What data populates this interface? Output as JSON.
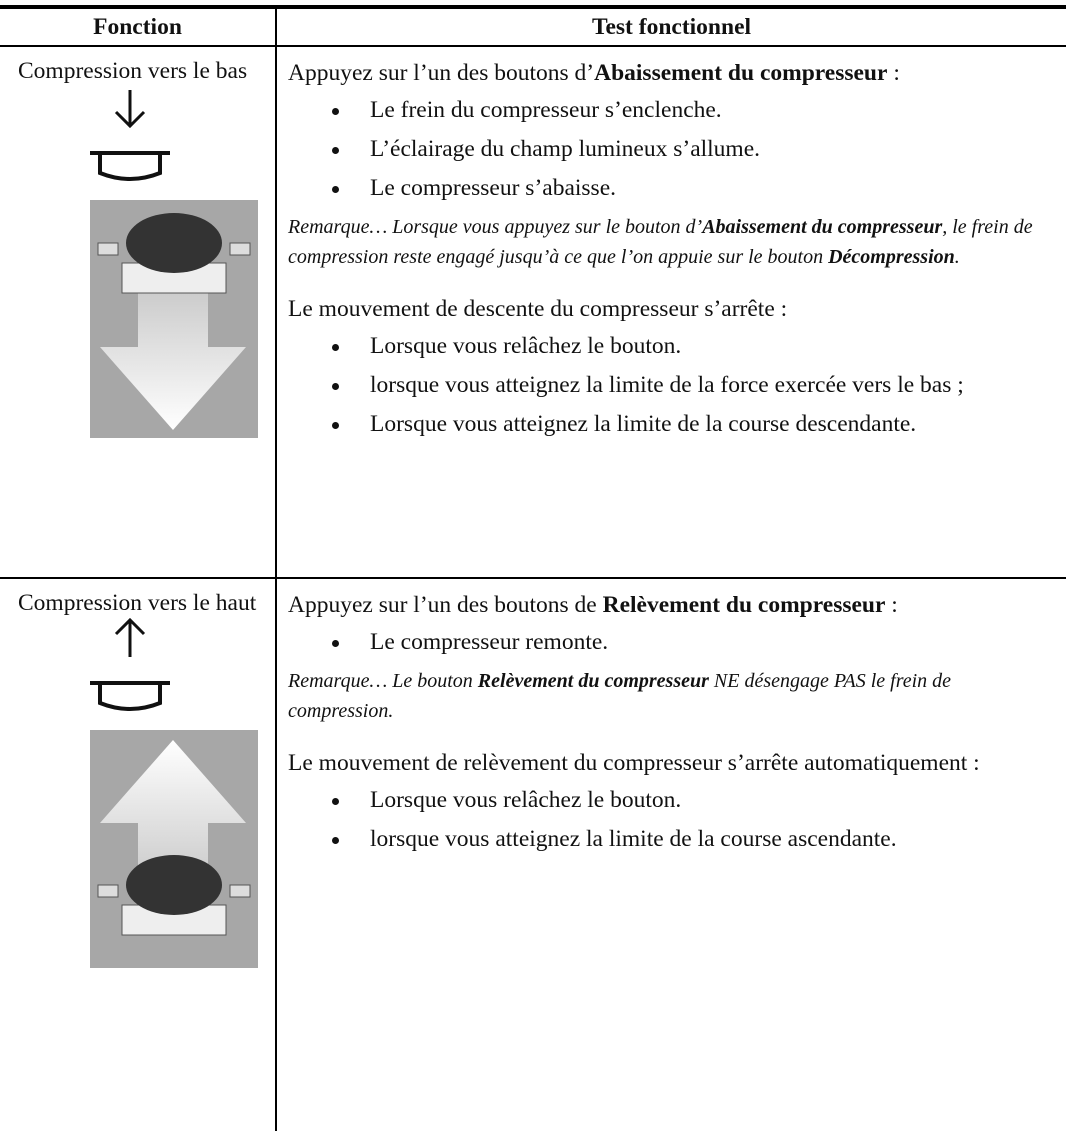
{
  "table": {
    "headers": [
      "Fonction",
      "Test fonctionnel"
    ],
    "rows": [
      {
        "function": "Compression vers le bas",
        "intro": [
          "Appuyez sur l’un des boutons d’",
          "Abaissement du compresseur",
          " :"
        ],
        "bullets": [
          "Le frein du compresseur s’enclenche.",
          "L’éclairage du champ lumineux s’allume.",
          "Le compresseur s’abaisse."
        ],
        "note": [
          "Remarque… Lorsque vous appuyez sur le bouton d’",
          "Abaissement du compresseur",
          ", le frein de compression reste engagé jusqu’à ce que l’on appuie sur le bouton ",
          "Décompression",
          "."
        ],
        "stop": "Le mouvement de descente du compresseur s’arrête :",
        "stop_bullets": [
          "Lorsque vous relâchez le bouton.",
          "lorsque vous atteignez la limite de la force exercée vers le bas ;",
          "Lorsque vous atteignez la limite de la course descendante."
        ]
      },
      {
        "function": "Compression vers le haut",
        "intro": [
          "Appuyez sur l’un des boutons de ",
          "Relèvement du compresseur",
          " :"
        ],
        "bullets": [
          "Le compresseur remonte."
        ],
        "note": [
          "Remarque… Le bouton ",
          "Relèvement du compresseur",
          " NE désengage PAS le frein de compression."
        ],
        "stop": "Le mouvement de relèvement du compresseur s’arrête automatiquement :",
        "stop_bullets": [
          "Lorsque vous relâchez le bouton.",
          "lorsque vous atteignez la limite de la course ascendante."
        ]
      }
    ]
  }
}
